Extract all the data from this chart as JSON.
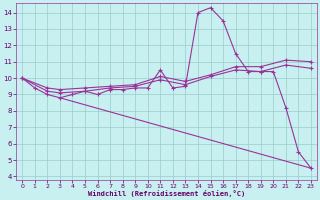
{
  "title": "",
  "xlabel": "Windchill (Refroidissement éolien,°C)",
  "bg_color": "#c8f0f0",
  "grid_color": "#99cccc",
  "line_color": "#993399",
  "xlim": [
    -0.5,
    23.5
  ],
  "ylim": [
    3.8,
    14.6
  ],
  "xticks": [
    0,
    1,
    2,
    3,
    4,
    5,
    6,
    7,
    8,
    9,
    10,
    11,
    12,
    13,
    14,
    15,
    16,
    17,
    18,
    19,
    20,
    21,
    22,
    23
  ],
  "yticks": [
    4,
    5,
    6,
    7,
    8,
    9,
    10,
    11,
    12,
    13,
    14
  ],
  "line1_x": [
    0,
    1,
    2,
    3,
    4,
    5,
    6,
    7,
    8,
    9,
    10,
    11,
    12,
    13,
    14,
    15,
    16,
    17,
    18,
    19,
    20,
    21,
    22,
    23
  ],
  "line1_y": [
    10.0,
    9.4,
    9.0,
    8.8,
    9.0,
    9.2,
    9.0,
    9.3,
    9.3,
    9.4,
    9.4,
    10.5,
    9.4,
    9.5,
    14.0,
    14.3,
    13.5,
    11.5,
    10.4,
    10.4,
    10.4,
    8.2,
    5.5,
    4.5
  ],
  "line2_x": [
    0,
    2,
    3,
    5,
    7,
    9,
    11,
    13,
    15,
    17,
    19,
    21,
    23
  ],
  "line2_y": [
    10.0,
    9.4,
    9.3,
    9.4,
    9.5,
    9.6,
    10.1,
    9.8,
    10.2,
    10.7,
    10.7,
    11.1,
    11.0
  ],
  "line3_x": [
    0,
    2,
    3,
    5,
    7,
    9,
    11,
    13,
    15,
    17,
    19,
    21,
    23
  ],
  "line3_y": [
    10.0,
    9.2,
    9.1,
    9.2,
    9.4,
    9.5,
    9.9,
    9.6,
    10.1,
    10.5,
    10.4,
    10.8,
    10.6
  ],
  "line4_x": [
    3,
    23
  ],
  "line4_y": [
    8.8,
    4.5
  ]
}
